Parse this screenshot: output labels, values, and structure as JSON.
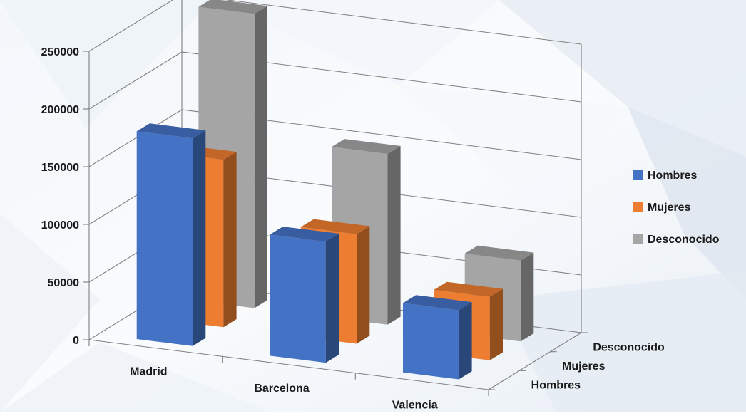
{
  "chart_data": {
    "type": "bar",
    "categories": [
      "Madrid",
      "Barcelona",
      "Valencia"
    ],
    "series": [
      {
        "name": "Hombres",
        "values": [
          180000,
          105000,
          60000
        ]
      },
      {
        "name": "Mujeres",
        "values": [
          145000,
          95000,
          55000
        ]
      },
      {
        "name": "Desconocido",
        "values": [
          255000,
          148000,
          70000
        ]
      }
    ],
    "depth_labels": [
      "Hombres",
      "Mujeres",
      "Desconocido"
    ],
    "y_ticks": [
      "0",
      "50000",
      "100000",
      "150000",
      "200000",
      "250000"
    ],
    "ylim": [
      0,
      250000
    ],
    "grid": true,
    "legend": "right",
    "three_d": true
  },
  "colors": {
    "Hombres": "#4472c4",
    "Mujeres": "#ed7d31",
    "Desconocido": "#a5a5a5"
  }
}
